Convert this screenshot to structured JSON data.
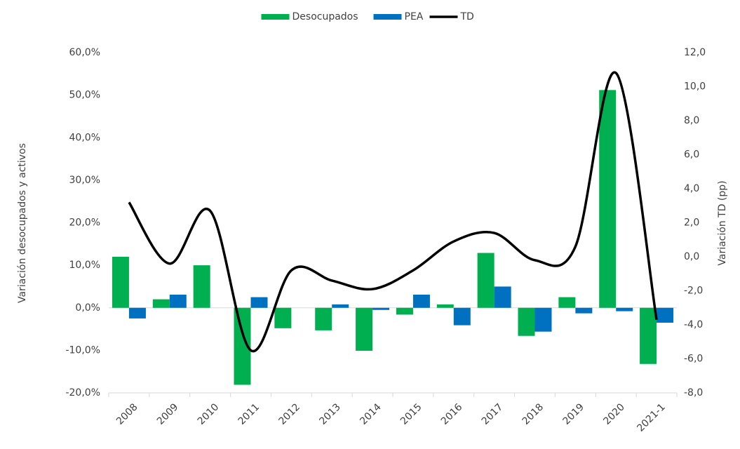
{
  "chart_data": {
    "type": "bar_line",
    "ylabel": "Variación desocupados y activos",
    "y2label": "Variación TD (pp)",
    "categories": [
      "2008",
      "2009",
      "2010",
      "2011",
      "2012",
      "2013",
      "2014",
      "2015",
      "2016",
      "2017",
      "2018",
      "2019",
      "2020",
      "2021-1"
    ],
    "series": [
      {
        "name": "Desocupados",
        "type": "bar",
        "color": "#00b050",
        "values": [
          12.0,
          2.0,
          10.0,
          -18.1,
          -4.8,
          -5.3,
          -10.1,
          -1.6,
          0.8,
          12.9,
          -6.6,
          2.5,
          51.2,
          -13.2
        ]
      },
      {
        "name": "PEA",
        "type": "bar",
        "color": "#0070c0",
        "values": [
          -2.5,
          3.1,
          0,
          2.5,
          0,
          0.8,
          -0.5,
          3.1,
          -4.1,
          5.0,
          -5.6,
          -1.3,
          -0.8,
          -3.5
        ]
      },
      {
        "name": "TD",
        "type": "line",
        "axis": "y2",
        "color": "#000000",
        "values": [
          3.2,
          -0.4,
          2.7,
          -5.5,
          -0.8,
          -1.4,
          -1.9,
          -0.8,
          0.9,
          1.4,
          -0.2,
          0.6,
          10.8,
          -3.7
        ]
      }
    ],
    "ylim": [
      -20,
      60
    ],
    "yticks": [
      {
        "value": -20,
        "label": "-20,0%"
      },
      {
        "value": -10,
        "label": "-10,0%"
      },
      {
        "value": 0,
        "label": "0,0%"
      },
      {
        "value": 10,
        "label": "10,0%"
      },
      {
        "value": 20,
        "label": "20,0%"
      },
      {
        "value": 30,
        "label": "30,0%"
      },
      {
        "value": 40,
        "label": "40,0%"
      },
      {
        "value": 50,
        "label": "50,0%"
      },
      {
        "value": 60,
        "label": "60,0%"
      }
    ],
    "y2lim": [
      -8,
      12
    ],
    "y2ticks": [
      {
        "value": -8,
        "label": "-8,0"
      },
      {
        "value": -6,
        "label": "-6,0"
      },
      {
        "value": -4,
        "label": "-4,0"
      },
      {
        "value": -2,
        "label": "-2,0"
      },
      {
        "value": 0,
        "label": "0,0"
      },
      {
        "value": 2,
        "label": "2,0"
      },
      {
        "value": 4,
        "label": "4,0"
      },
      {
        "value": 6,
        "label": "6,0"
      },
      {
        "value": 8,
        "label": "8,0"
      },
      {
        "value": 10,
        "label": "10,0"
      },
      {
        "value": 12,
        "label": "12,0"
      }
    ],
    "legend": "top"
  }
}
